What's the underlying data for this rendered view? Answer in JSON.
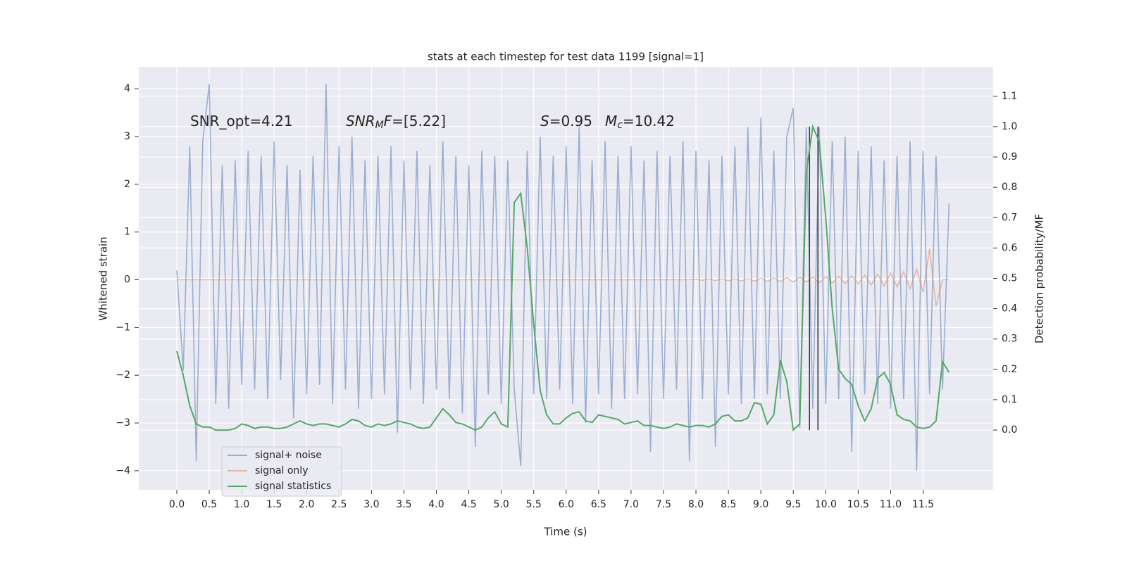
{
  "chart_data": {
    "type": "line",
    "title": "stats at each timestep for test data 1199 [signal=1]",
    "xlabel": "Time (s)",
    "ylabel": "Whitened strain",
    "y2label": "Detection probability/MF",
    "annotations": [
      [
        {
          "text": "SNR_opt=4.21"
        }
      ],
      [
        {
          "text": "SNR",
          "italic": true
        },
        {
          "text": "M",
          "italic": true,
          "sub": true
        },
        {
          "text": "F",
          "italic": true
        },
        {
          "text": "=[5.22]"
        }
      ],
      [
        {
          "text": "S",
          "italic": true
        },
        {
          "text": "=0.95"
        }
      ],
      [
        {
          "text": "M",
          "italic": true
        },
        {
          "text": "c",
          "italic": true,
          "sub": true
        },
        {
          "text": "=10.42"
        }
      ]
    ],
    "x": [
      0,
      0.1,
      0.2,
      0.3,
      0.4,
      0.5,
      0.6,
      0.7,
      0.8,
      0.9,
      1,
      1.1,
      1.2,
      1.3,
      1.4,
      1.5,
      1.6,
      1.7,
      1.8,
      1.9,
      2,
      2.1,
      2.2,
      2.3,
      2.4,
      2.5,
      2.6,
      2.7,
      2.8,
      2.9,
      3,
      3.1,
      3.2,
      3.3,
      3.4,
      3.5,
      3.6,
      3.7,
      3.8,
      3.9,
      4,
      4.1,
      4.2,
      4.3,
      4.4,
      4.5,
      4.6,
      4.7,
      4.8,
      4.9,
      5,
      5.1,
      5.2,
      5.3,
      5.4,
      5.5,
      5.6,
      5.7,
      5.8,
      5.9,
      6,
      6.1,
      6.2,
      6.3,
      6.4,
      6.5,
      6.6,
      6.7,
      6.8,
      6.9,
      7,
      7.1,
      7.2,
      7.3,
      7.4,
      7.5,
      7.6,
      7.7,
      7.8,
      7.9,
      8,
      8.1,
      8.2,
      8.3,
      8.4,
      8.5,
      8.6,
      8.7,
      8.8,
      8.9,
      9,
      9.1,
      9.2,
      9.3,
      9.4,
      9.5,
      9.6,
      9.7,
      9.8,
      9.9,
      10,
      10.1,
      10.2,
      10.3,
      10.4,
      10.5,
      10.6,
      10.7,
      10.8,
      10.9,
      11,
      11.1,
      11.2,
      11.3,
      11.4,
      11.5,
      11.6,
      11.7,
      11.8,
      11.9
    ],
    "series": [
      {
        "name": "signal+ noise",
        "color": "#4c72b0",
        "alpha": 0.5,
        "values": [
          0.2,
          -1.9,
          2.8,
          -3.8,
          2.9,
          4.1,
          -2.6,
          2.4,
          -2.7,
          2.5,
          -2.2,
          2.7,
          -2.3,
          2.6,
          -2.5,
          2.9,
          -2.1,
          2.4,
          -2.9,
          2.3,
          -2.4,
          2.6,
          -2.2,
          4.1,
          -2.6,
          2.8,
          -2.3,
          3.0,
          -2.7,
          2.5,
          -2.5,
          2.6,
          -2.4,
          2.8,
          -3.2,
          2.5,
          -2.3,
          2.7,
          -2.6,
          2.4,
          -2.3,
          2.9,
          -2.5,
          2.6,
          -2.8,
          2.4,
          -3.5,
          2.7,
          -2.4,
          2.6,
          -2.6,
          2.5,
          -2.3,
          -3.9,
          2.7,
          -2.4,
          3.0,
          -2.5,
          2.6,
          -2.3,
          2.8,
          -2.6,
          3.2,
          -3.0,
          2.5,
          -2.4,
          2.9,
          -2.7,
          2.6,
          -2.5,
          2.8,
          -2.4,
          2.5,
          -3.6,
          2.7,
          -2.5,
          2.6,
          -2.3,
          2.9,
          -3.8,
          2.7,
          -2.5,
          2.5,
          -3.5,
          2.6,
          -2.4,
          2.8,
          -2.6,
          3.2,
          -2.5,
          3.4,
          -2.4,
          2.7,
          -2.5,
          3.0,
          3.6,
          -3.1,
          3.2,
          -2.7,
          3.2,
          -2.6,
          2.9,
          -2.5,
          3.0,
          -3.6,
          2.7,
          -2.4,
          2.8,
          -2.6,
          2.5,
          -2.7,
          2.6,
          -2.5,
          2.9,
          -4.0,
          2.7,
          -2.4,
          2.6,
          -2.3,
          1.6
        ]
      },
      {
        "name": "signal only",
        "color": "#dd8452",
        "alpha": 0.5,
        "values": [
          0,
          0,
          0,
          0,
          0,
          0,
          0,
          0,
          0,
          0,
          0,
          0,
          0,
          0,
          0,
          0,
          0,
          0,
          0,
          0,
          0,
          0,
          0,
          0,
          0,
          0,
          0,
          0,
          0,
          0,
          0,
          0,
          0,
          0,
          0,
          0,
          0,
          0,
          0,
          0,
          0,
          0,
          0,
          0,
          0,
          0,
          0,
          0,
          0,
          0,
          0,
          0,
          0,
          0,
          0,
          0,
          0,
          0,
          0,
          0,
          0,
          0,
          0,
          0,
          0,
          0,
          0,
          0,
          0,
          0,
          0,
          0,
          0,
          0,
          0,
          0,
          0,
          0,
          0,
          0,
          0.01,
          -0.01,
          0.015,
          -0.015,
          0.02,
          -0.02,
          0.02,
          -0.025,
          0.025,
          -0.03,
          0.03,
          -0.035,
          0.035,
          -0.04,
          0.04,
          -0.045,
          0.05,
          -0.05,
          0.055,
          -0.06,
          0.065,
          -0.07,
          0.075,
          -0.08,
          0.085,
          -0.09,
          0.1,
          -0.11,
          0.12,
          -0.13,
          0.14,
          -0.15,
          0.17,
          -0.19,
          0.22,
          -0.26,
          0.65,
          -0.55,
          0,
          0
        ]
      },
      {
        "name": "signal statistics",
        "color": "#55a868",
        "alpha": 1,
        "axis": "y2",
        "values": [
          0.26,
          0.18,
          0.08,
          0.02,
          0.01,
          0.01,
          0.0,
          0.0,
          0.0,
          0.005,
          0.02,
          0.015,
          0.005,
          0.01,
          0.01,
          0.005,
          0.005,
          0.01,
          0.02,
          0.03,
          0.02,
          0.015,
          0.02,
          0.02,
          0.015,
          0.01,
          0.02,
          0.035,
          0.03,
          0.015,
          0.01,
          0.02,
          0.015,
          0.02,
          0.03,
          0.025,
          0.02,
          0.01,
          0.005,
          0.01,
          0.04,
          0.07,
          0.05,
          0.025,
          0.02,
          0.01,
          0.0,
          0.01,
          0.04,
          0.06,
          0.02,
          0.01,
          0.75,
          0.78,
          0.6,
          0.35,
          0.13,
          0.05,
          0.02,
          0.02,
          0.04,
          0.055,
          0.06,
          0.03,
          0.025,
          0.05,
          0.045,
          0.04,
          0.035,
          0.02,
          0.025,
          0.03,
          0.015,
          0.015,
          0.01,
          0.005,
          0.01,
          0.02,
          0.015,
          0.01,
          0.015,
          0.015,
          0.01,
          0.02,
          0.045,
          0.05,
          0.03,
          0.03,
          0.04,
          0.09,
          0.085,
          0.02,
          0.05,
          0.23,
          0.16,
          0.0,
          0.02,
          0.85,
          1.0,
          0.95,
          0.7,
          0.4,
          0.2,
          0.17,
          0.15,
          0.08,
          0.03,
          0.07,
          0.17,
          0.19,
          0.15,
          0.05,
          0.035,
          0.03,
          0.01,
          0.005,
          0.01,
          0.03,
          0.225,
          0.19
        ]
      }
    ],
    "vlines": {
      "x": [
        9.75,
        9.88
      ],
      "y2range": [
        0,
        1.0
      ],
      "color": "#333333"
    },
    "xlim": [
      -0.586,
      12.58
    ],
    "ylim": [
      -4.4,
      4.46
    ],
    "y2lim": [
      -0.197,
      1.197
    ],
    "xticks": [
      {
        "value": 0,
        "label": "0.0"
      },
      0.5,
      {
        "value": 1,
        "label": "1.0"
      },
      1.5,
      {
        "value": 2,
        "label": "2.0"
      },
      2.5,
      {
        "value": 3,
        "label": "3.0"
      },
      3.5,
      {
        "value": 4,
        "label": "4.0"
      },
      4.5,
      {
        "value": 5,
        "label": "5.0"
      },
      5.5,
      {
        "value": 6,
        "label": "6.0"
      },
      6.5,
      {
        "value": 7,
        "label": "7.0"
      },
      7.5,
      {
        "value": 8,
        "label": "8.0"
      },
      8.5,
      {
        "value": 9,
        "label": "9.0"
      },
      9.5,
      {
        "value": 10,
        "label": "10.0"
      },
      10.5,
      {
        "value": 11,
        "label": "11.0"
      },
      11.5
    ],
    "yticks": [
      {
        "value": -4,
        "label": "−4"
      },
      {
        "value": -3,
        "label": "−3"
      },
      {
        "value": -2,
        "label": "−2"
      },
      {
        "value": -1,
        "label": "−1"
      },
      0,
      1,
      2,
      3,
      4
    ],
    "y2ticks": [
      {
        "value": 0,
        "label": "0.0"
      },
      0.1,
      0.2,
      0.3,
      0.4,
      0.5,
      0.6,
      0.7,
      0.8,
      0.9,
      {
        "value": 1,
        "label": "1.0"
      },
      1.1
    ],
    "grid": true,
    "legend_loc": "lower left"
  }
}
